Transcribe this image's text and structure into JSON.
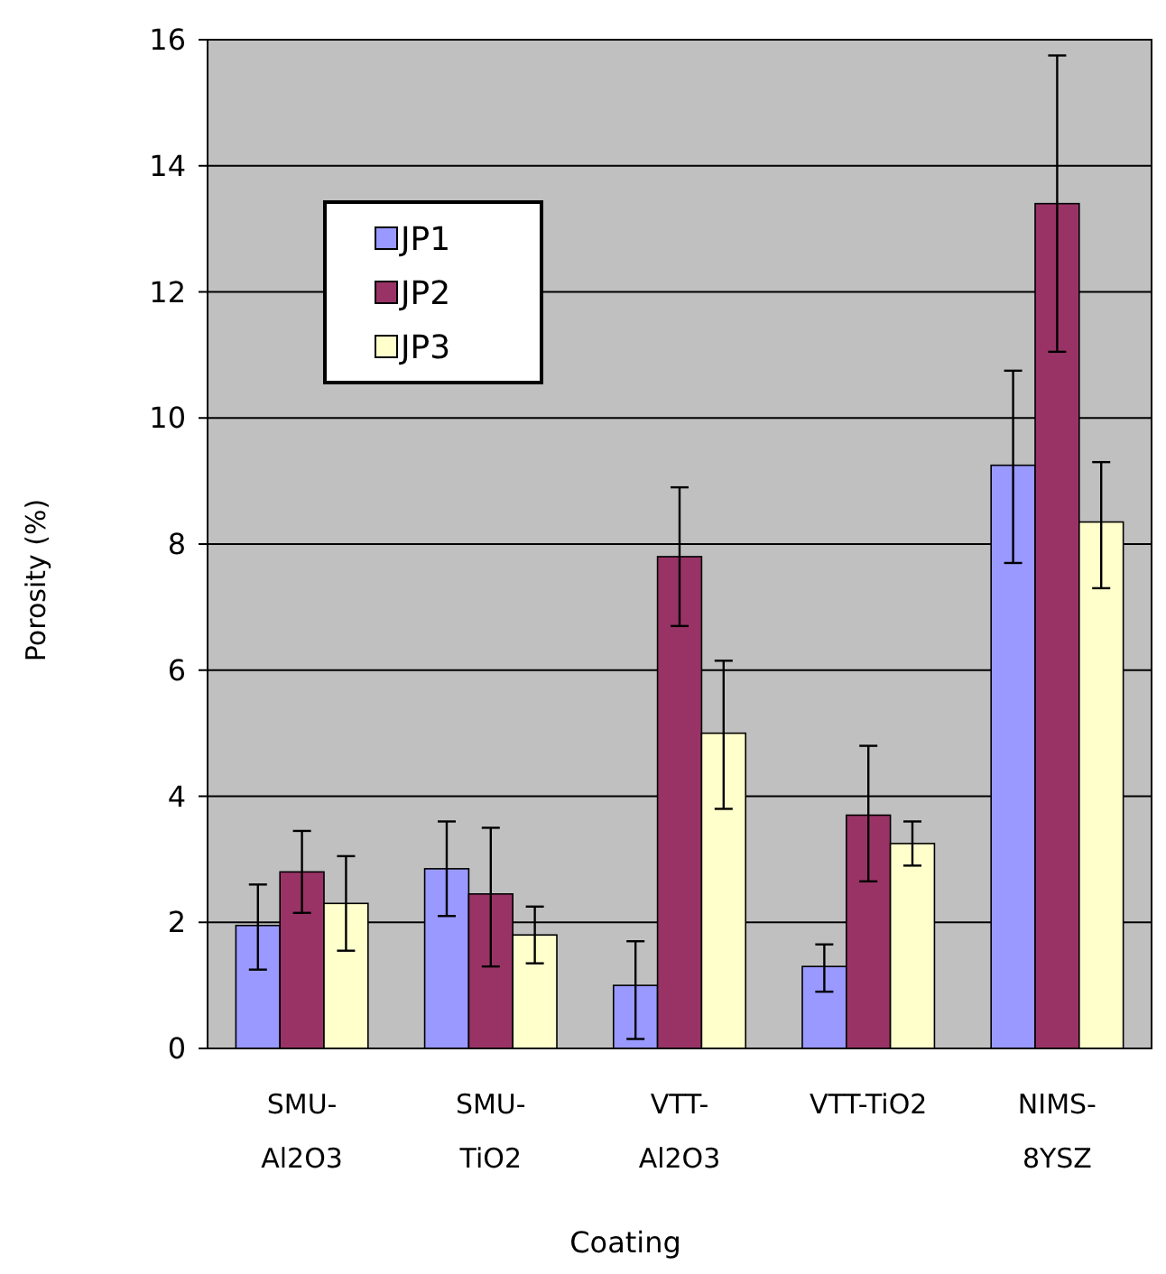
{
  "chart_data": {
    "type": "bar",
    "xlabel": "Coating",
    "ylabel": "Porosity (%)",
    "categories": [
      "SMU-\nAl2O3",
      "SMU-\nTiO2",
      "VTT-\nAl2O3",
      "VTT-TiO2",
      "NIMS-\n8YSZ"
    ],
    "series": [
      {
        "name": "JP1",
        "color": "#9999ff",
        "values": [
          1.95,
          2.85,
          1.0,
          1.3,
          9.25
        ],
        "errors": [
          [
            1.25,
            2.6
          ],
          [
            2.1,
            3.6
          ],
          [
            0.15,
            1.7
          ],
          [
            0.9,
            1.65
          ],
          [
            7.7,
            10.75
          ]
        ]
      },
      {
        "name": "JP2",
        "color": "#993366",
        "values": [
          2.8,
          2.45,
          7.8,
          3.7,
          13.4
        ],
        "errors": [
          [
            2.15,
            3.45
          ],
          [
            1.3,
            3.5
          ],
          [
            6.7,
            8.9
          ],
          [
            2.65,
            4.8
          ],
          [
            11.05,
            15.75
          ]
        ]
      },
      {
        "name": "JP3",
        "color": "#ffffcc",
        "values": [
          2.3,
          1.8,
          5.0,
          3.25,
          8.35
        ],
        "errors": [
          [
            1.55,
            3.05
          ],
          [
            1.35,
            2.25
          ],
          [
            3.8,
            6.15
          ],
          [
            2.9,
            3.6
          ],
          [
            7.3,
            9.3
          ]
        ]
      }
    ],
    "ylim": [
      0,
      16
    ],
    "yticks": [
      0,
      2,
      4,
      6,
      8,
      10,
      12,
      14,
      16
    ],
    "grid": "y",
    "legend": "top left"
  }
}
